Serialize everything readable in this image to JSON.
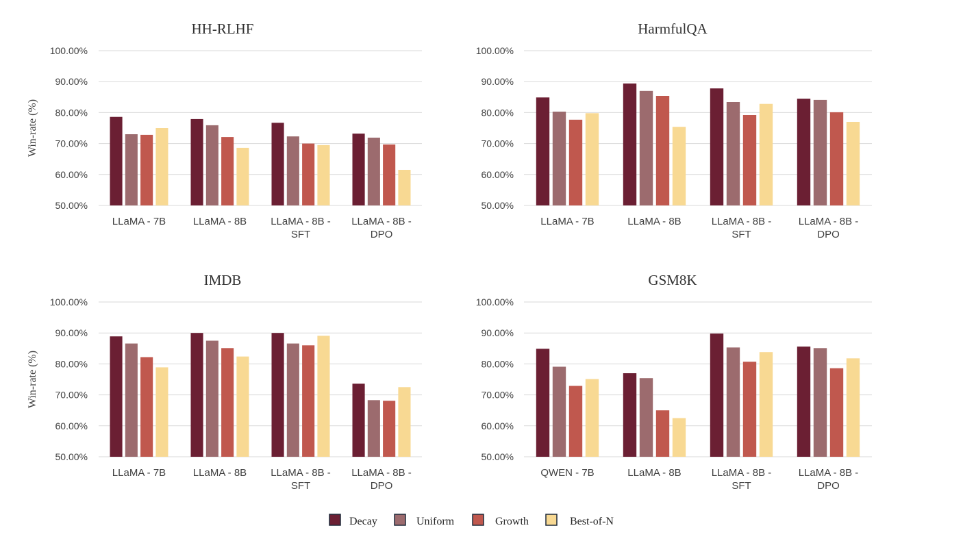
{
  "colors": {
    "Decay": "#6b1f33",
    "Uniform": "#9c6b6e",
    "Growth": "#c0584e",
    "Best-of-N": "#f8d993"
  },
  "legend": [
    "Decay",
    "Uniform",
    "Growth",
    "Best-of-N"
  ],
  "chart_data": [
    {
      "type": "bar",
      "title": "HH-RLHF",
      "ylabel": "Win-rate (%)",
      "ylim": [
        50,
        100
      ],
      "yticks": [
        "50.00%",
        "60.00%",
        "70.00%",
        "80.00%",
        "90.00%",
        "100.00%"
      ],
      "categories": [
        [
          "LLaMA  - 7B"
        ],
        [
          "LLaMA - 8B"
        ],
        [
          "LLaMA - 8B -",
          "SFT"
        ],
        [
          "LLaMA - 8B -",
          "DPO"
        ]
      ],
      "series": [
        {
          "name": "Decay",
          "values": [
            78.6,
            77.9,
            76.7,
            73.2
          ]
        },
        {
          "name": "Uniform",
          "values": [
            73.0,
            75.9,
            72.3,
            71.9
          ]
        },
        {
          "name": "Growth",
          "values": [
            72.8,
            72.1,
            70.0,
            69.7
          ]
        },
        {
          "name": "Best-of-N",
          "values": [
            75.0,
            68.6,
            69.5,
            61.5
          ]
        }
      ]
    },
    {
      "type": "bar",
      "title": "HarmfulQA",
      "ylabel": "",
      "ylim": [
        50,
        100
      ],
      "yticks": [
        "50.00%",
        "60.00%",
        "70.00%",
        "80.00%",
        "90.00%",
        "100.00%"
      ],
      "categories": [
        [
          "LLaMA  - 7B"
        ],
        [
          "LLaMA - 8B"
        ],
        [
          "LLaMA - 8B -",
          "SFT"
        ],
        [
          "LLaMA - 8B -",
          "DPO"
        ]
      ],
      "series": [
        {
          "name": "Decay",
          "values": [
            84.9,
            89.4,
            87.8,
            84.5
          ]
        },
        {
          "name": "Uniform",
          "values": [
            80.3,
            87.0,
            83.4,
            84.1
          ]
        },
        {
          "name": "Growth",
          "values": [
            77.7,
            85.4,
            79.2,
            80.1
          ]
        },
        {
          "name": "Best-of-N",
          "values": [
            79.8,
            75.4,
            82.8,
            77.0
          ]
        }
      ]
    },
    {
      "type": "bar",
      "title": "IMDB",
      "ylabel": "Win-rate (%)",
      "ylim": [
        50,
        100
      ],
      "yticks": [
        "50.00%",
        "60.00%",
        "70.00%",
        "80.00%",
        "90.00%",
        "100.00%"
      ],
      "categories": [
        [
          "LLaMA  - 7B"
        ],
        [
          "LLaMA - 8B"
        ],
        [
          "LLaMA - 8B -",
          "SFT"
        ],
        [
          "LLaMA - 8B -",
          "DPO"
        ]
      ],
      "series": [
        {
          "name": "Decay",
          "values": [
            88.9,
            90.0,
            90.0,
            73.6
          ]
        },
        {
          "name": "Uniform",
          "values": [
            86.6,
            87.5,
            86.6,
            68.3
          ]
        },
        {
          "name": "Growth",
          "values": [
            82.2,
            85.1,
            86.0,
            68.1
          ]
        },
        {
          "name": "Best-of-N",
          "values": [
            78.9,
            82.4,
            89.1,
            72.5
          ]
        }
      ]
    },
    {
      "type": "bar",
      "title": "GSM8K",
      "ylabel": "",
      "ylim": [
        50,
        100
      ],
      "yticks": [
        "50.00%",
        "60.00%",
        "70.00%",
        "80.00%",
        "90.00%",
        "100.00%"
      ],
      "categories": [
        [
          "QWEN - 7B"
        ],
        [
          "LLaMA -  8B"
        ],
        [
          "LLaMA  - 8B -",
          "SFT"
        ],
        [
          "LLaMA - 8B -",
          "DPO"
        ]
      ],
      "series": [
        {
          "name": "Decay",
          "values": [
            84.9,
            77.0,
            89.8,
            85.6
          ]
        },
        {
          "name": "Uniform",
          "values": [
            79.1,
            75.4,
            85.3,
            85.1
          ]
        },
        {
          "name": "Growth",
          "values": [
            72.9,
            65.0,
            80.7,
            78.6
          ]
        },
        {
          "name": "Best-of-N",
          "values": [
            75.1,
            62.5,
            83.8,
            81.8
          ]
        }
      ]
    }
  ]
}
